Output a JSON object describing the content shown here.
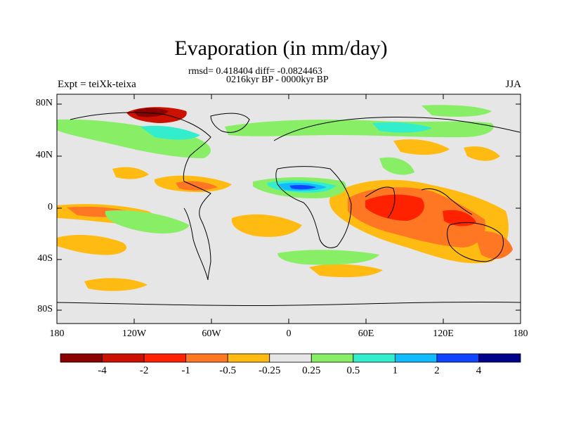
{
  "title": "Evaporation (in mm/day)",
  "stats_line": "rmsd= 0.418404 diff= -0.0824463",
  "period_line": "0216kyr BP - 0000kyr BP",
  "left_label": "Expt = teiXk-teixa",
  "right_label": "JJA",
  "y_ticks": [
    "80N",
    "40N",
    "0",
    "40S",
    "80S"
  ],
  "x_ticks": [
    "180",
    "120W",
    "60W",
    "0",
    "60E",
    "120E",
    "180"
  ],
  "colorbar": {
    "colors": [
      "#8b0000",
      "#cc1100",
      "#ff2200",
      "#ff7722",
      "#ffbb11",
      "#e6e6e6",
      "#88ee66",
      "#33eecc",
      "#11bbff",
      "#1144ff",
      "#00008b"
    ],
    "labels": [
      "-4",
      "-2",
      "-1",
      "-0.5",
      "-0.25",
      "0.25",
      "0.5",
      "1",
      "2",
      "4"
    ]
  },
  "background_color": "#e6e6e6"
}
